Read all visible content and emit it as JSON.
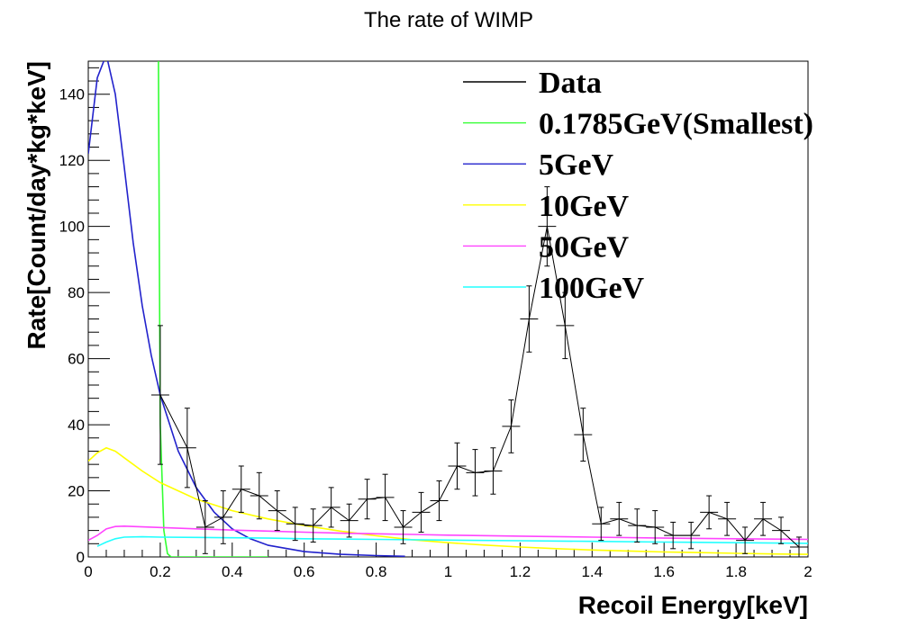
{
  "chart_data": {
    "type": "line",
    "title": "The rate of WIMP",
    "xlabel": "Recoil Energy[keV]",
    "ylabel": "Rate[Count/day*kg*keV]",
    "xlim": [
      0,
      2
    ],
    "ylim": [
      0,
      150
    ],
    "xticks": [
      0,
      0.2,
      0.4,
      0.6,
      0.8,
      1,
      1.2,
      1.4,
      1.6,
      1.8,
      2
    ],
    "xtick_labels": [
      "0",
      "0.2",
      "0.4",
      "0.6",
      "0.8",
      "1",
      "1.2",
      "1.4",
      "1.6",
      "1.8",
      "2"
    ],
    "yticks": [
      0,
      20,
      40,
      60,
      80,
      100,
      120,
      140
    ],
    "ytick_labels": [
      "0",
      "20",
      "40",
      "60",
      "80",
      "100",
      "120",
      "140"
    ],
    "grid": false,
    "legend_position": "top-right",
    "data_series": {
      "name": "Data",
      "color": "#000000",
      "x": [
        0.2,
        0.275,
        0.325,
        0.375,
        0.425,
        0.475,
        0.525,
        0.575,
        0.625,
        0.675,
        0.725,
        0.775,
        0.825,
        0.875,
        0.925,
        0.975,
        1.025,
        1.075,
        1.125,
        1.175,
        1.225,
        1.275,
        1.325,
        1.375,
        1.425,
        1.475,
        1.525,
        1.575,
        1.625,
        1.675,
        1.725,
        1.775,
        1.825,
        1.875,
        1.925,
        1.975
      ],
      "y": [
        49,
        33,
        9,
        12,
        20.5,
        18.5,
        14,
        10,
        9.5,
        15,
        11,
        17.5,
        18,
        9,
        13.5,
        17,
        27.5,
        25.5,
        26,
        39.5,
        72,
        100,
        70,
        37,
        10,
        11.5,
        9.5,
        9,
        6.5,
        6.5,
        13.5,
        11.5,
        5,
        11.5,
        8,
        3
      ],
      "yerr": [
        21,
        12,
        8,
        8,
        7,
        7,
        6,
        5,
        5,
        6,
        5,
        6,
        7,
        5,
        6,
        6,
        7,
        7,
        7,
        8,
        10,
        12,
        10,
        8,
        5,
        5,
        5,
        5,
        4,
        4,
        5,
        5,
        4,
        5,
        4,
        3
      ],
      "xerr": 0.025
    },
    "series": [
      {
        "name": "0.1785GeV(Smallest)",
        "color": "#33ff33",
        "x": [
          0.195,
          0.198,
          0.2,
          0.21,
          0.22,
          0.23,
          0.5
        ],
        "y": [
          150,
          80,
          40,
          8,
          1,
          0,
          0
        ]
      },
      {
        "name": "5GeV",
        "color": "#2222cc",
        "x": [
          0,
          0.025,
          0.05,
          0.075,
          0.1,
          0.125,
          0.15,
          0.175,
          0.2,
          0.25,
          0.3,
          0.35,
          0.4,
          0.45,
          0.5,
          0.6,
          0.7,
          0.8,
          0.88
        ],
        "y": [
          122,
          145,
          152,
          140,
          118,
          95,
          76,
          61,
          49,
          32,
          21,
          13.5,
          8.5,
          5.5,
          3.5,
          1.6,
          0.8,
          0.4,
          0.2
        ]
      },
      {
        "name": "10GeV",
        "color": "#ffff00",
        "x": [
          0,
          0.025,
          0.05,
          0.075,
          0.1,
          0.15,
          0.2,
          0.3,
          0.4,
          0.5,
          0.6,
          0.7,
          0.8,
          0.9,
          1.0,
          1.1,
          1.2,
          1.3,
          1.4,
          1.5,
          1.6,
          1.7,
          1.8,
          1.9,
          2.0
        ],
        "y": [
          29,
          31.5,
          33,
          32,
          30,
          26,
          22.5,
          17.5,
          14,
          11.5,
          9.5,
          7.8,
          6.4,
          5.2,
          4.3,
          3.6,
          3.0,
          2.5,
          2.1,
          1.8,
          1.5,
          1.3,
          1.1,
          0.9,
          0.8
        ]
      },
      {
        "name": "50GeV",
        "color": "#ff44ff",
        "x": [
          0,
          0.025,
          0.05,
          0.075,
          0.1,
          0.15,
          0.2,
          0.3,
          0.4,
          0.5,
          0.6,
          0.7,
          0.8,
          0.9,
          1.0,
          1.2,
          1.4,
          1.6,
          1.8,
          2.0
        ],
        "y": [
          5,
          6.5,
          8.5,
          9.2,
          9.3,
          9.1,
          8.9,
          8.5,
          8.1,
          7.8,
          7.5,
          7.2,
          7.0,
          6.8,
          6.6,
          6.3,
          6.0,
          5.7,
          5.5,
          5.3
        ]
      },
      {
        "name": "100GeV",
        "color": "#22ffff",
        "x": [
          0.025,
          0.05,
          0.075,
          0.1,
          0.15,
          0.2,
          0.3,
          0.4,
          0.5,
          0.6,
          0.8,
          1.0,
          1.2,
          1.4,
          1.6,
          1.8,
          2.0
        ],
        "y": [
          3.2,
          4.5,
          5.5,
          6.0,
          6.1,
          6.0,
          5.9,
          5.8,
          5.7,
          5.5,
          5.3,
          5.1,
          4.9,
          4.7,
          4.5,
          4.3,
          4.1
        ]
      }
    ],
    "legend": [
      "Data",
      "0.1785GeV(Smallest)",
      "5GeV",
      "10GeV",
      "50GeV",
      "100GeV"
    ]
  }
}
